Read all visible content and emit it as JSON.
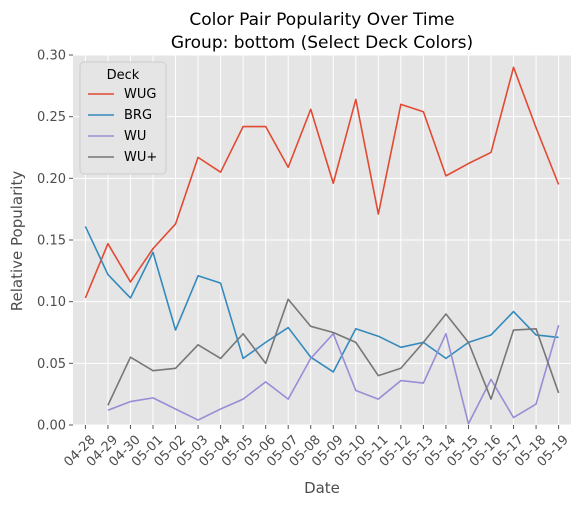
{
  "chart_data": {
    "type": "line",
    "title": "Color Pair Popularity Over Time",
    "subtitle": "Group: bottom (Select Deck Colors)",
    "xlabel": "Date",
    "ylabel": "Relative Popularity",
    "ylim": [
      0,
      0.3
    ],
    "yticks": [
      0.0,
      0.05,
      0.1,
      0.15,
      0.2,
      0.25,
      0.3
    ],
    "ytick_labels": [
      "0.00",
      "0.05",
      "0.10",
      "0.15",
      "0.20",
      "0.25",
      "0.30"
    ],
    "grid": true,
    "legend": {
      "title": "Deck",
      "placement": "top-left"
    },
    "categories": [
      "04-28",
      "04-29",
      "04-30",
      "05-01",
      "05-02",
      "05-03",
      "05-04",
      "05-05",
      "05-06",
      "05-07",
      "05-08",
      "05-09",
      "05-10",
      "05-11",
      "05-12",
      "05-13",
      "05-14",
      "05-15",
      "05-16",
      "05-17",
      "05-18",
      "05-19"
    ],
    "series": [
      {
        "name": "WUG",
        "color": "#E24A33",
        "values": [
          0.103,
          0.147,
          0.116,
          0.143,
          0.163,
          0.217,
          0.205,
          0.242,
          0.242,
          0.209,
          0.256,
          0.196,
          0.264,
          0.171,
          0.26,
          0.254,
          0.202,
          0.212,
          0.221,
          0.29,
          0.241,
          0.195
        ]
      },
      {
        "name": "BRG",
        "color": "#348ABD",
        "values": [
          0.161,
          0.122,
          0.103,
          0.14,
          0.077,
          0.121,
          0.115,
          0.054,
          0.067,
          0.079,
          0.055,
          0.043,
          0.078,
          0.072,
          0.063,
          0.067,
          0.054,
          0.067,
          0.073,
          0.092,
          0.073,
          0.071
        ]
      },
      {
        "name": "WU",
        "color": "#988ED5",
        "values": [
          null,
          0.012,
          0.019,
          0.022,
          0.013,
          0.004,
          0.013,
          0.021,
          0.035,
          0.021,
          0.054,
          0.074,
          0.028,
          0.021,
          0.036,
          0.034,
          0.074,
          0.001,
          0.037,
          0.006,
          0.017,
          0.081
        ]
      },
      {
        "name": "WU+",
        "color": "#777777",
        "values": [
          null,
          0.016,
          0.055,
          0.044,
          0.046,
          0.065,
          0.054,
          0.074,
          0.05,
          0.102,
          0.08,
          0.075,
          0.067,
          0.04,
          0.046,
          0.067,
          0.09,
          0.067,
          0.021,
          0.077,
          0.078,
          0.026
        ]
      }
    ]
  }
}
